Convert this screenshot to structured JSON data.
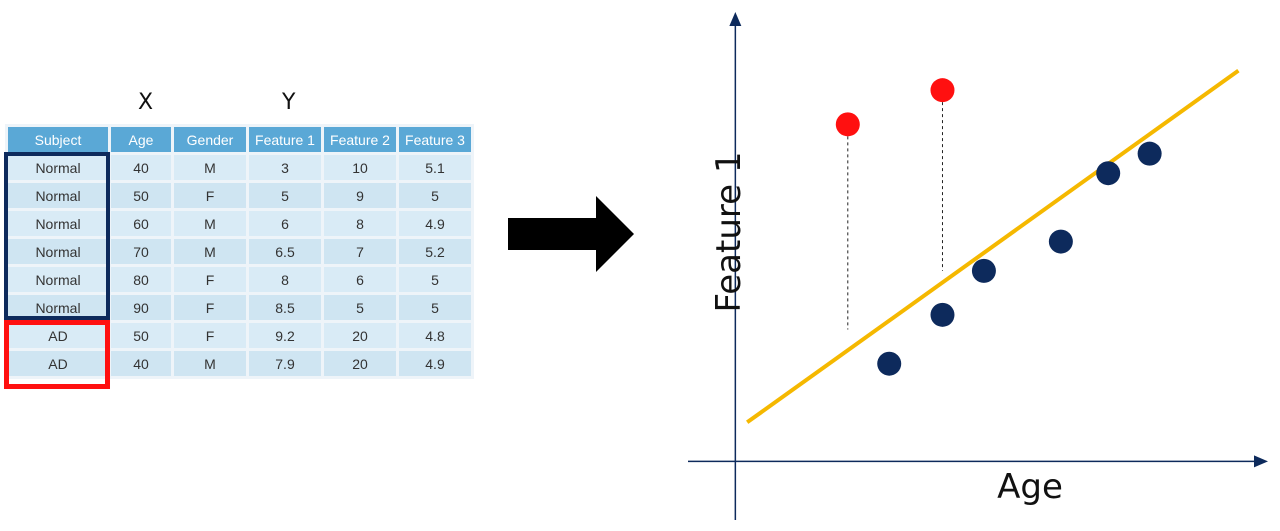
{
  "header_labels": {
    "x": "X",
    "y": "Y"
  },
  "table": {
    "columns": [
      "Subject",
      "Age",
      "Gender",
      "Feature 1",
      "Feature 2",
      "Feature 3"
    ],
    "rows": [
      [
        "Normal",
        "40",
        "M",
        "3",
        "10",
        "5.1"
      ],
      [
        "Normal",
        "50",
        "F",
        "5",
        "9",
        "5"
      ],
      [
        "Normal",
        "60",
        "M",
        "6",
        "8",
        "4.9"
      ],
      [
        "Normal",
        "70",
        "M",
        "6.5",
        "7",
        "5.2"
      ],
      [
        "Normal",
        "80",
        "F",
        "8",
        "6",
        "5"
      ],
      [
        "Normal",
        "90",
        "F",
        "8.5",
        "5",
        "5"
      ],
      [
        "AD",
        "50",
        "F",
        "9.2",
        "20",
        "4.8"
      ],
      [
        "AD",
        "40",
        "M",
        "7.9",
        "20",
        "4.9"
      ]
    ],
    "group_colors": {
      "normal": "#0d2a5c",
      "ad": "#ff1010"
    }
  },
  "arrow": {
    "color": "#000000"
  },
  "chart_data": {
    "type": "scatter",
    "xlabel": "Age",
    "ylabel": "Feature 1",
    "colors": {
      "normal": "#0d2a5c",
      "ad": "#ff1010",
      "fit": "#f5b800",
      "axis": "#0d2a5c"
    },
    "normal_points": [
      [
        2.6,
        2.0
      ],
      [
        3.5,
        3.0
      ],
      [
        4.2,
        3.9
      ],
      [
        5.5,
        4.5
      ],
      [
        6.3,
        5.9
      ],
      [
        7.0,
        6.3
      ]
    ],
    "ad_points": [
      [
        1.9,
        6.9
      ],
      [
        3.5,
        7.6
      ]
    ],
    "fit_line": [
      [
        0.2,
        0.8
      ],
      [
        8.5,
        8.0
      ]
    ],
    "residuals": [
      [
        1.9,
        6.9,
        2.7
      ],
      [
        3.5,
        7.6,
        3.9
      ]
    ],
    "xlim": [
      -0.8,
      9.0
    ],
    "ylim": [
      -1.2,
      9.2
    ]
  }
}
